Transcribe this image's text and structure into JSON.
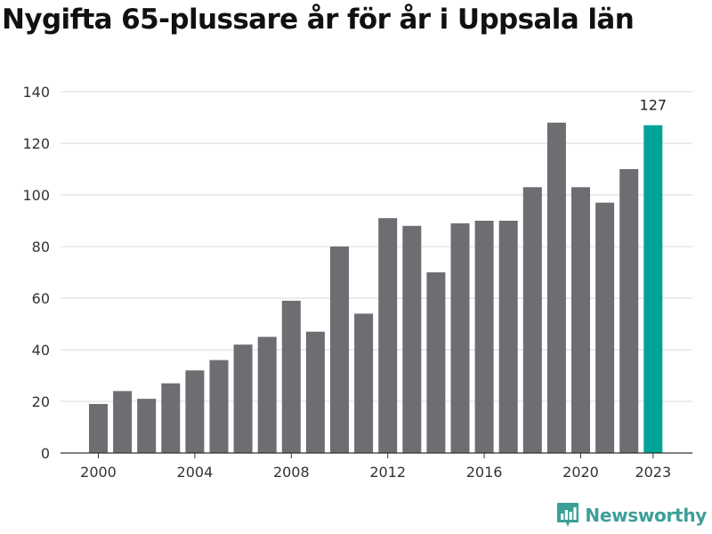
{
  "title": "Nygifta 65-plussare år för år i Uppsala län",
  "brand": {
    "name": "Newsworthy",
    "logo_icon": "newsworthy-logo-icon",
    "color": "#3c9f98"
  },
  "chart_data": {
    "type": "bar",
    "categories": [
      "2000",
      "2001",
      "2002",
      "2003",
      "2004",
      "2005",
      "2006",
      "2007",
      "2008",
      "2009",
      "2010",
      "2011",
      "2012",
      "2013",
      "2014",
      "2015",
      "2016",
      "2017",
      "2018",
      "2019",
      "2020",
      "2021",
      "2022",
      "2023"
    ],
    "values": [
      19,
      24,
      21,
      27,
      32,
      36,
      42,
      45,
      59,
      47,
      80,
      54,
      91,
      88,
      70,
      89,
      90,
      90,
      103,
      128,
      103,
      97,
      110,
      127
    ],
    "x_tick_labels": [
      "2000",
      "2004",
      "2008",
      "2012",
      "2016",
      "2020",
      "2023"
    ],
    "y_ticks": [
      0,
      20,
      40,
      60,
      80,
      100,
      120,
      140
    ],
    "ylim": [
      0,
      140
    ],
    "xlabel": "",
    "ylabel": "",
    "grid": true,
    "highlight": {
      "category": "2023",
      "label": "127"
    },
    "colors": {
      "bar": "#6e6d72",
      "highlight": "#00a398",
      "grid": "#d9d9d9",
      "axis": "#333333"
    }
  }
}
